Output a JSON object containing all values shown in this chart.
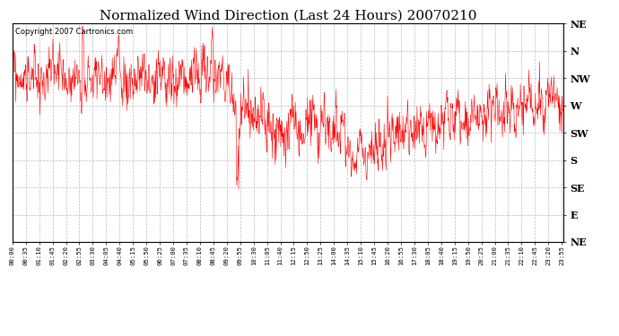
{
  "title": "Normalized Wind Direction (Last 24 Hours) 20070210",
  "copyright_text": "Copyright 2007 Cartronics.com",
  "title_fontsize": 11,
  "background_color": "#ffffff",
  "plot_bg_color": "#ffffff",
  "line_color": "#ff0000",
  "line_width": 0.4,
  "ytick_labels": [
    "NE",
    "N",
    "NW",
    "W",
    "SW",
    "S",
    "SE",
    "E",
    "NE"
  ],
  "ytick_values": [
    8,
    7,
    6,
    5,
    4,
    3,
    2,
    1,
    0
  ],
  "ylim": [
    0,
    8
  ],
  "grid_color": "#bbbbbb",
  "grid_linestyle": "--",
  "num_points": 1440,
  "seed": 99,
  "xtick_interval_min": 35,
  "figwidth": 6.9,
  "figheight": 3.75,
  "dpi": 100
}
